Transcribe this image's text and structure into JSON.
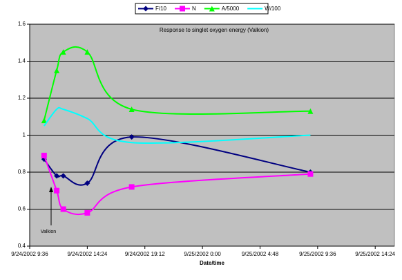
{
  "chart_data": {
    "type": "line",
    "title": "Response to singlet oxygen energy (Valkion)",
    "x_label": "Date/time",
    "annotation": "Valkion",
    "x": [
      10.8,
      11.85,
      12.4,
      14.4,
      18.1,
      33.0
    ],
    "xlim": [
      9.6,
      40
    ],
    "xticks": [
      {
        "value": 9.6,
        "label": "9/24/2002 9:36"
      },
      {
        "value": 14.4,
        "label": "9/24/2002 14:24"
      },
      {
        "value": 19.2,
        "label": "9/24/2002 19:12"
      },
      {
        "value": 24,
        "label": "9/25/2002 0:00"
      },
      {
        "value": 28.8,
        "label": "9/25/2002 4:48"
      },
      {
        "value": 33.6,
        "label": "9/25/2002 9:36"
      },
      {
        "value": 38.4,
        "label": "9/25/2002 14:24"
      }
    ],
    "ylim": [
      0.4,
      1.6
    ],
    "yticks": [
      0.4,
      0.6,
      0.8,
      1,
      1.2,
      1.4,
      1.6
    ],
    "grid": true,
    "legend": "top",
    "series": [
      {
        "name": "F/10",
        "color": "#000080",
        "marker": "diamond",
        "values": [
          0.87,
          0.78,
          0.78,
          0.74,
          0.99,
          0.8
        ]
      },
      {
        "name": "N",
        "color": "#ff00ff",
        "marker": "square",
        "values": [
          0.89,
          0.7,
          0.6,
          0.58,
          0.72,
          0.79
        ]
      },
      {
        "name": "A/5000",
        "color": "#00ff00",
        "marker": "triangle",
        "values": [
          1.08,
          1.35,
          1.45,
          1.45,
          1.14,
          1.13
        ]
      },
      {
        "name": "W/100",
        "color": "#00ffff",
        "marker": "none",
        "values": [
          1.05,
          1.14,
          1.14,
          1.09,
          0.96,
          1.0
        ]
      }
    ]
  }
}
